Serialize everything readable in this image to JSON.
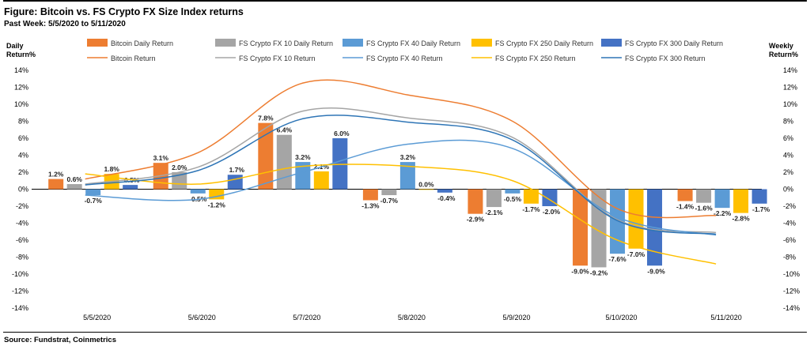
{
  "header": {
    "title": "Figure: Bitcoin vs. FS Crypto FX Size Index returns",
    "subtitle": "Past Week: 5/5/2020 to 5/11/2020"
  },
  "footer": {
    "source": "Source: Fundstrat, Coinmetrics"
  },
  "chart_data": {
    "type": "bar",
    "title": "Figure: Bitcoin vs. FS Crypto FX Size Index returns",
    "subtitle": "Past Week: 5/5/2020 to 5/11/2020",
    "ylabel_left": "Daily\nReturn%",
    "ylabel_right": "Weekly\nReturn%",
    "ylim": [
      -14,
      14
    ],
    "yticks": [
      "-14%",
      "-12%",
      "-10%",
      "-8%",
      "-6%",
      "-4%",
      "-2%",
      "0%",
      "2%",
      "4%",
      "6%",
      "8%",
      "10%",
      "12%",
      "14%"
    ],
    "grid": false,
    "legend_position": "top",
    "categories": [
      "5/5/2020",
      "5/6/2020",
      "5/7/2020",
      "5/8/2020",
      "5/9/2020",
      "5/10/2020",
      "5/11/2020"
    ],
    "series": [
      {
        "name": "Bitcoin Daily Return",
        "color": "#ED7D31",
        "values": [
          1.2,
          3.1,
          7.8,
          -1.3,
          -2.9,
          -9.0,
          -1.4
        ],
        "labels": [
          "1.2%",
          "3.1%",
          "7.8%",
          "-1.3%",
          "-2.9%",
          "-9.0%",
          "-1.4%"
        ]
      },
      {
        "name": "FS Crypto FX 10 Daily Return",
        "color": "#A5A5A5",
        "values": [
          0.6,
          2.0,
          6.4,
          -0.7,
          -2.1,
          -9.2,
          -1.6
        ],
        "labels": [
          "0.6%",
          "2.0%",
          "6.4%",
          "-0.7%",
          "-2.1%",
          "-9.2%",
          "-1.6%"
        ]
      },
      {
        "name": "FS Crypto FX 40 Daily Return",
        "color": "#5B9BD5",
        "values": [
          -0.7,
          -0.5,
          3.2,
          3.2,
          -0.5,
          -7.6,
          -2.2
        ],
        "labels": [
          "-0.7%",
          "-0.5%",
          "3.2%",
          "3.2%",
          "-0.5%",
          "-7.6%",
          "-2.2%"
        ]
      },
      {
        "name": "FS Crypto FX 250 Daily Return",
        "color": "#FFC000",
        "values": [
          1.8,
          -1.2,
          2.1,
          0.0,
          -1.7,
          -7.0,
          -2.8
        ],
        "labels": [
          "1.8%",
          "-1.2%",
          "2.1%",
          "0.0%",
          "-1.7%",
          "-7.0%",
          "-2.8%"
        ]
      },
      {
        "name": "FS Crypto FX 300 Daily Return",
        "color": "#4472C4",
        "values": [
          0.5,
          1.7,
          6.0,
          -0.4,
          -2.0,
          -9.0,
          -1.7
        ],
        "labels": [
          "0.5%",
          "1.7%",
          "6.0%",
          "-0.4%",
          "-2.0%",
          "-9.0%",
          "-1.7%"
        ]
      }
    ],
    "line_series": [
      {
        "name": "Bitcoin Return",
        "color": "#ED7D31",
        "values": [
          1.2,
          4.3,
          12.5,
          11.1,
          8.0,
          -2.3,
          -3.1
        ]
      },
      {
        "name": "FS Crypto FX 10 Return",
        "color": "#A5A5A5",
        "values": [
          0.6,
          2.6,
          9.2,
          8.4,
          6.1,
          -3.6,
          -5.1
        ]
      },
      {
        "name": "FS Crypto FX 40 Return",
        "color": "#5B9BD5",
        "values": [
          -0.7,
          -1.2,
          2.0,
          5.3,
          4.8,
          -3.3,
          -5.4
        ]
      },
      {
        "name": "FS Crypto FX 250 Return",
        "color": "#FFC000",
        "values": [
          1.8,
          0.6,
          2.7,
          2.7,
          1.0,
          -6.0,
          -8.8
        ]
      },
      {
        "name": "FS Crypto FX 300 Return",
        "color": "#2E75B6",
        "values": [
          0.5,
          2.2,
          8.3,
          7.9,
          5.8,
          -3.7,
          -5.3
        ]
      }
    ]
  }
}
